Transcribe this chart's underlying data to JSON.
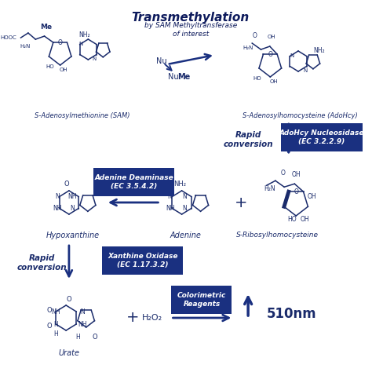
{
  "bg_color": "#ffffff",
  "dark_blue": "#1a2b6b",
  "navy": "#0d1a5c",
  "box_color": "#1a3080",
  "arrow_color": "#1a3080",
  "title_italic": "Transmethylation",
  "title_sub": "by SAM Methyltransferase\nof interest",
  "sam_label": "S-Adenosylmethionine (SAM)",
  "adhcy_label": "S-Adenosylhomocysteine (AdoHcy)",
  "rapid1_label": "Rapid\nconversion",
  "box1_label": "AdoHcy Nucleosidase\n(EC 3.2.2.9)",
  "adenine_label": "Adenine",
  "hypoxanthine_label": "Hypoxanthine",
  "sribosyl_label": "S-Ribosylhomocysteine",
  "box2_label": "Adenine Deaminase\n(EC 3.5.4.2)",
  "rapid2_label": "Rapid\nconversion",
  "box3_label": "Xanthine Oxidase\n(EC 1.17.3.2)",
  "urate_label": "Urate",
  "box4_label": "Colorimetric\nReagents",
  "wavelength": "510nm",
  "h2o2": "H₂O₂",
  "nu": "Nu",
  "nu_me": "Nu·Me"
}
